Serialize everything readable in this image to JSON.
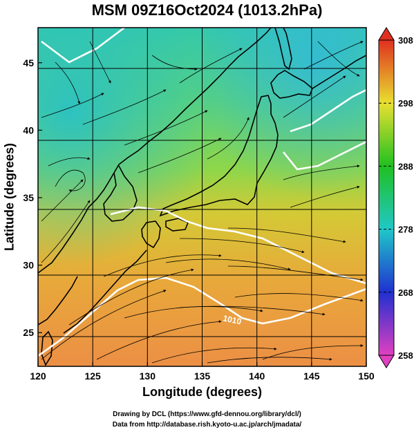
{
  "title": "MSM 09Z16Oct2024 (1013.2hPa)",
  "x_axis_label": "Longitude (degrees)",
  "y_axis_label": "Latitude  (degrees)",
  "credits": [
    "Drawing by DCL (https://www.gfd-dennou.org/library/dcl/)",
    "Data from http://database.rish.kyoto-u.ac.jp/arch/jmadata/"
  ],
  "contour_label": "1010",
  "colors": {
    "land_outline": "#000000",
    "isobar": "#ffffff",
    "streamline": "#000000"
  },
  "chart_data": {
    "type": "heatmap",
    "x_range": [
      120,
      150
    ],
    "y_range": [
      22.5,
      47.6
    ],
    "x_ticks": [
      120,
      125,
      130,
      135,
      140,
      145,
      150
    ],
    "y_ticks": [
      25,
      30,
      35,
      40,
      45
    ],
    "colorbar": {
      "min": 258,
      "max": 308,
      "tick_labels": [
        258,
        268,
        278,
        288,
        298,
        308
      ],
      "stops": [
        "#e040c0",
        "#2030d0",
        "#20c8c8",
        "#20c020",
        "#e8e030",
        "#e03020"
      ]
    }
  }
}
